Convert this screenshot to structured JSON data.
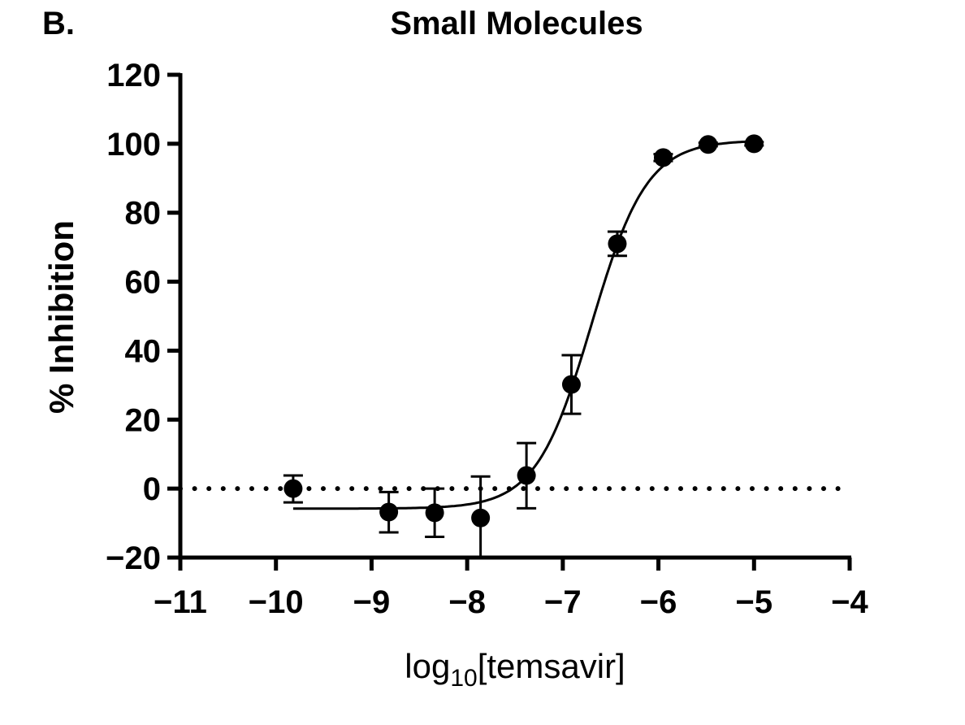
{
  "chart_data": {
    "type": "scatter",
    "panel_label": "B.",
    "title": "Small Molecules",
    "xlabel": {
      "base": "log",
      "sub": "10",
      "rest": "[temsavir]"
    },
    "ylabel": "% Inhibition",
    "xlim": [
      -11,
      -4
    ],
    "ylim": [
      -20,
      120
    ],
    "xticks": [
      -11,
      -10,
      -9,
      -8,
      -7,
      -6,
      -5,
      -4
    ],
    "yticks": [
      -20,
      0,
      20,
      40,
      60,
      80,
      100,
      120
    ],
    "xtick_labels": [
      "−11",
      "−10",
      "−9",
      "−8",
      "−7",
      "−6",
      "−5",
      "−4"
    ],
    "ytick_labels": [
      "−20",
      "0",
      "20",
      "40",
      "60",
      "80",
      "100",
      "120"
    ],
    "reference_line": {
      "y": 0,
      "style": "dotted"
    },
    "points": [
      {
        "x": -9.82,
        "y": 0.0,
        "err_low": -4.0,
        "err_high": 3.8
      },
      {
        "x": -8.82,
        "y": -6.8,
        "err_low": -12.7,
        "err_high": -1.0
      },
      {
        "x": -8.34,
        "y": -7.0,
        "err_low": -14.0,
        "err_high": 0.0
      },
      {
        "x": -7.86,
        "y": -8.5,
        "err_low": -20.5,
        "err_high": 3.5
      },
      {
        "x": -7.38,
        "y": 3.8,
        "err_low": -5.7,
        "err_high": 13.2
      },
      {
        "x": -6.91,
        "y": 30.2,
        "err_low": 21.7,
        "err_high": 38.7
      },
      {
        "x": -6.43,
        "y": 71.0,
        "err_low": 67.5,
        "err_high": 74.5
      },
      {
        "x": -5.95,
        "y": 96.0,
        "err_low": 95.0,
        "err_high": 97.0
      },
      {
        "x": -5.48,
        "y": 99.8,
        "err_low": 99.3,
        "err_high": 100.3
      },
      {
        "x": -5.0,
        "y": 100.0,
        "err_low": 99.5,
        "err_high": 100.5
      }
    ],
    "fit": {
      "model": "four-parameter logistic",
      "bottom": -5.8,
      "top": 101,
      "logIC50": -6.7,
      "hill": 1.5,
      "x_range": [
        -9.82,
        -5.0
      ]
    },
    "colors": {
      "marks": "#000000"
    },
    "grid": false
  }
}
